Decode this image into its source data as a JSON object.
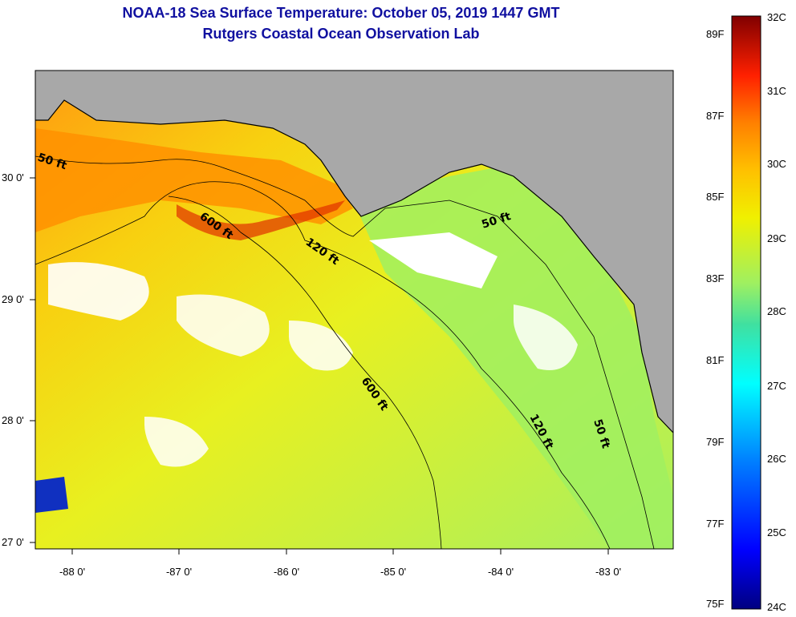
{
  "title": {
    "line1": "NOAA-18 Sea Surface Temperature:  October 05, 2019 1447 GMT",
    "line2": "Rutgers Coastal Ocean Observation Lab"
  },
  "axes": {
    "lon_ticks": [
      "-88 0'",
      "-87 0'",
      "-86 0'",
      "-85 0'",
      "-84 0'",
      "-83 0'"
    ],
    "lat_ticks": [
      "30 0'",
      "29 0'",
      "28 0'",
      "27 0'"
    ]
  },
  "contours": {
    "labels": [
      "50 ft",
      "600 ft",
      "120 ft",
      "50 ft",
      "600 ft",
      "120 ft",
      "50 ft"
    ]
  },
  "colorbar": {
    "fahrenheit": [
      "89F",
      "87F",
      "85F",
      "83F",
      "81F",
      "79F",
      "77F",
      "75F"
    ],
    "celsius": [
      "32C",
      "31C",
      "30C",
      "29C",
      "28C",
      "27C",
      "26C",
      "25C",
      "24C"
    ],
    "colors": [
      "#000080",
      "#0000ff",
      "#00a0ff",
      "#00ffff",
      "#40e0a0",
      "#a0f060",
      "#f0f000",
      "#ffc000",
      "#ff8000",
      "#ff2000",
      "#c00000",
      "#800000"
    ]
  },
  "colors": {
    "land": "#a8a8a8",
    "title": "#1010a0",
    "cloud": "#ffffff"
  }
}
